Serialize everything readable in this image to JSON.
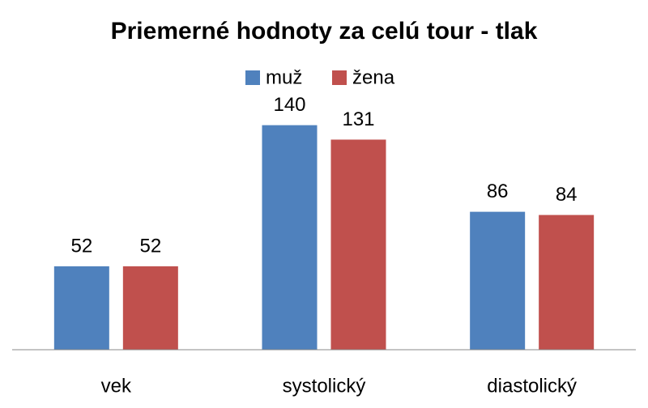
{
  "chart_data": {
    "type": "bar",
    "title": "Priemerné hodnoty za celú tour - tlak",
    "categories": [
      "vek",
      "systolický",
      "diastolický"
    ],
    "series": [
      {
        "name": "muž",
        "color": "#4f81bd",
        "values": [
          52,
          140,
          86
        ]
      },
      {
        "name": "žena",
        "color": "#c0504d",
        "values": [
          52,
          131,
          84
        ]
      }
    ],
    "ylim": [
      0,
      160
    ],
    "legend": "top"
  }
}
